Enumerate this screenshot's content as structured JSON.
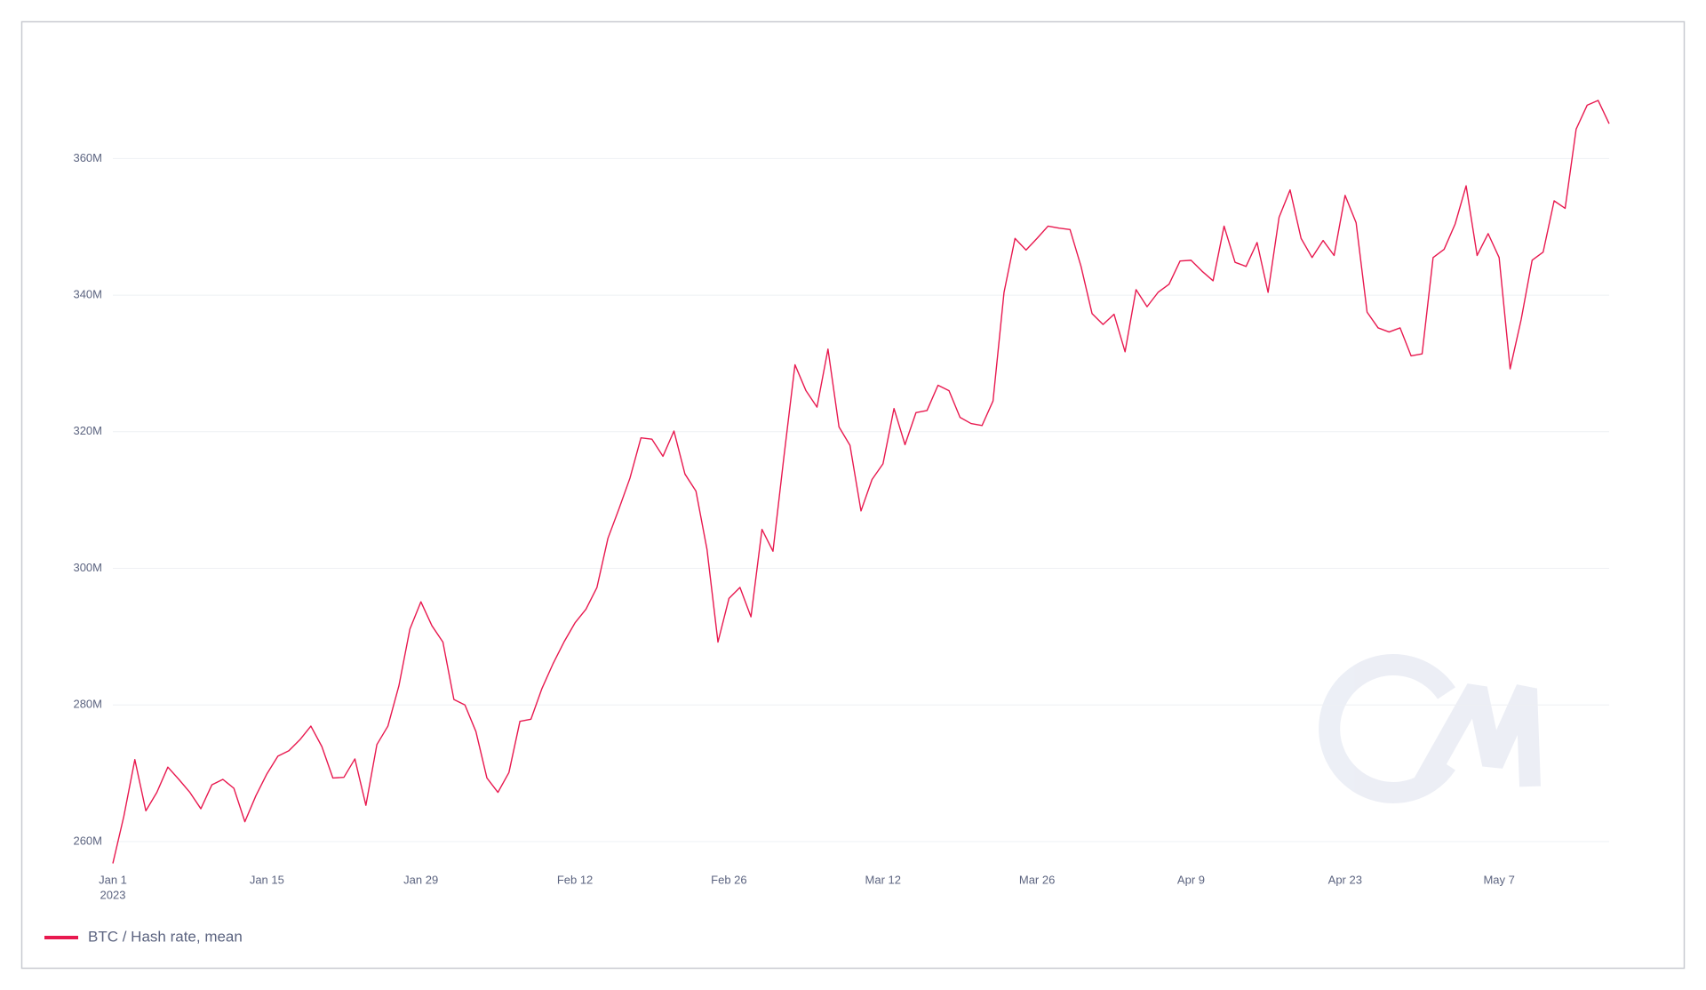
{
  "chart_data": {
    "type": "line",
    "x": [
      "2023-01-01",
      "2023-01-02",
      "2023-01-03",
      "2023-01-04",
      "2023-01-05",
      "2023-01-06",
      "2023-01-07",
      "2023-01-08",
      "2023-01-09",
      "2023-01-10",
      "2023-01-11",
      "2023-01-12",
      "2023-01-13",
      "2023-01-14",
      "2023-01-15",
      "2023-01-16",
      "2023-01-17",
      "2023-01-18",
      "2023-01-19",
      "2023-01-20",
      "2023-01-21",
      "2023-01-22",
      "2023-01-23",
      "2023-01-24",
      "2023-01-25",
      "2023-01-26",
      "2023-01-27",
      "2023-01-28",
      "2023-01-29",
      "2023-01-30",
      "2023-01-31",
      "2023-02-01",
      "2023-02-02",
      "2023-02-03",
      "2023-02-04",
      "2023-02-05",
      "2023-02-06",
      "2023-02-07",
      "2023-02-08",
      "2023-02-09",
      "2023-02-10",
      "2023-02-11",
      "2023-02-12",
      "2023-02-13",
      "2023-02-14",
      "2023-02-15",
      "2023-02-16",
      "2023-02-17",
      "2023-02-18",
      "2023-02-19",
      "2023-02-20",
      "2023-02-21",
      "2023-02-22",
      "2023-02-23",
      "2023-02-24",
      "2023-02-25",
      "2023-02-26",
      "2023-02-27",
      "2023-02-28",
      "2023-03-01",
      "2023-03-02",
      "2023-03-03",
      "2023-03-04",
      "2023-03-05",
      "2023-03-06",
      "2023-03-07",
      "2023-03-08",
      "2023-03-09",
      "2023-03-10",
      "2023-03-11",
      "2023-03-12",
      "2023-03-13",
      "2023-03-14",
      "2023-03-15",
      "2023-03-16",
      "2023-03-17",
      "2023-03-18",
      "2023-03-19",
      "2023-03-20",
      "2023-03-21",
      "2023-03-22",
      "2023-03-23",
      "2023-03-24",
      "2023-03-25",
      "2023-03-26",
      "2023-03-27",
      "2023-03-28",
      "2023-03-29",
      "2023-03-30",
      "2023-03-31",
      "2023-04-01",
      "2023-04-02",
      "2023-04-03",
      "2023-04-04",
      "2023-04-05",
      "2023-04-06",
      "2023-04-07",
      "2023-04-08",
      "2023-04-09",
      "2023-04-10",
      "2023-04-11",
      "2023-04-12",
      "2023-04-13",
      "2023-04-14",
      "2023-04-15",
      "2023-04-16",
      "2023-04-17",
      "2023-04-18",
      "2023-04-19",
      "2023-04-20",
      "2023-04-21",
      "2023-04-22",
      "2023-04-23",
      "2023-04-24",
      "2023-04-25",
      "2023-04-26",
      "2023-04-27",
      "2023-04-28",
      "2023-04-29",
      "2023-04-30",
      "2023-05-01",
      "2023-05-02",
      "2023-05-03",
      "2023-05-04",
      "2023-05-05",
      "2023-05-06",
      "2023-05-07",
      "2023-05-08",
      "2023-05-09",
      "2023-05-10",
      "2023-05-11",
      "2023-05-12",
      "2023-05-13",
      "2023-05-14",
      "2023-05-15",
      "2023-05-16",
      "2023-05-17"
    ],
    "series": [
      {
        "name": "BTC / Hash rate, mean",
        "color": "#e8194f",
        "values": [
          256800000,
          263700000,
          272000000,
          264500000,
          267200000,
          270900000,
          269100000,
          267200000,
          264800000,
          268300000,
          269100000,
          267800000,
          262900000,
          266700000,
          269900000,
          272500000,
          273300000,
          274900000,
          276900000,
          273900000,
          269300000,
          269400000,
          272100000,
          265300000,
          274200000,
          276900000,
          282800000,
          291100000,
          295100000,
          291600000,
          289200000,
          280800000,
          280000000,
          276100000,
          269300000,
          267200000,
          270100000,
          277600000,
          277900000,
          282400000,
          286000000,
          289200000,
          292000000,
          294000000,
          297200000,
          304400000,
          308700000,
          313200000,
          319100000,
          318900000,
          316400000,
          320100000,
          313800000,
          311300000,
          302800000,
          289200000,
          295600000,
          297200000,
          292900000,
          305700000,
          302500000,
          316400000,
          329800000,
          326000000,
          323600000,
          332100000,
          320700000,
          318000000,
          308400000,
          313000000,
          315300000,
          323400000,
          318100000,
          322800000,
          323100000,
          326800000,
          326000000,
          322100000,
          321200000,
          320900000,
          324500000,
          340400000,
          348300000,
          346600000,
          348300000,
          350100000,
          349800000,
          349600000,
          344200000,
          337300000,
          335700000,
          337200000,
          331700000,
          340800000,
          338300000,
          340400000,
          341600000,
          345000000,
          345100000,
          343500000,
          342100000,
          350100000,
          344800000,
          344200000,
          347700000,
          340400000,
          351400000,
          355400000,
          348300000,
          345500000,
          348000000,
          345800000,
          354600000,
          350600000,
          337500000,
          335200000,
          334600000,
          335200000,
          331100000,
          331400000,
          345500000,
          346700000,
          350400000,
          356000000,
          345800000,
          349000000,
          345500000,
          329200000,
          336400000,
          345100000,
          346300000,
          353800000,
          352700000,
          364300000,
          367800000,
          368500000,
          365100000
        ]
      }
    ],
    "xlim": [
      "2023-01-01",
      "2023-05-17"
    ],
    "xticks": [
      {
        "value": "2023-01-01",
        "label": "Jan 1"
      },
      {
        "value": "2023-01-15",
        "label": "Jan 15"
      },
      {
        "value": "2023-01-29",
        "label": "Jan 29"
      },
      {
        "value": "2023-02-12",
        "label": "Feb 12"
      },
      {
        "value": "2023-02-26",
        "label": "Feb 26"
      },
      {
        "value": "2023-03-12",
        "label": "Mar 12"
      },
      {
        "value": "2023-03-26",
        "label": "Mar 26"
      },
      {
        "value": "2023-04-09",
        "label": "Apr 9"
      },
      {
        "value": "2023-04-23",
        "label": "Apr 23"
      },
      {
        "value": "2023-05-07",
        "label": "May 7"
      }
    ],
    "x_year_label": "2023",
    "ylim": [
      257000000,
      378000000
    ],
    "yticks": [
      {
        "value": 260000000,
        "label": "260M"
      },
      {
        "value": 280000000,
        "label": "280M"
      },
      {
        "value": 300000000,
        "label": "300M"
      },
      {
        "value": 320000000,
        "label": "320M"
      },
      {
        "value": 340000000,
        "label": "340M"
      },
      {
        "value": 360000000,
        "label": "360M"
      }
    ],
    "grid": true
  }
}
